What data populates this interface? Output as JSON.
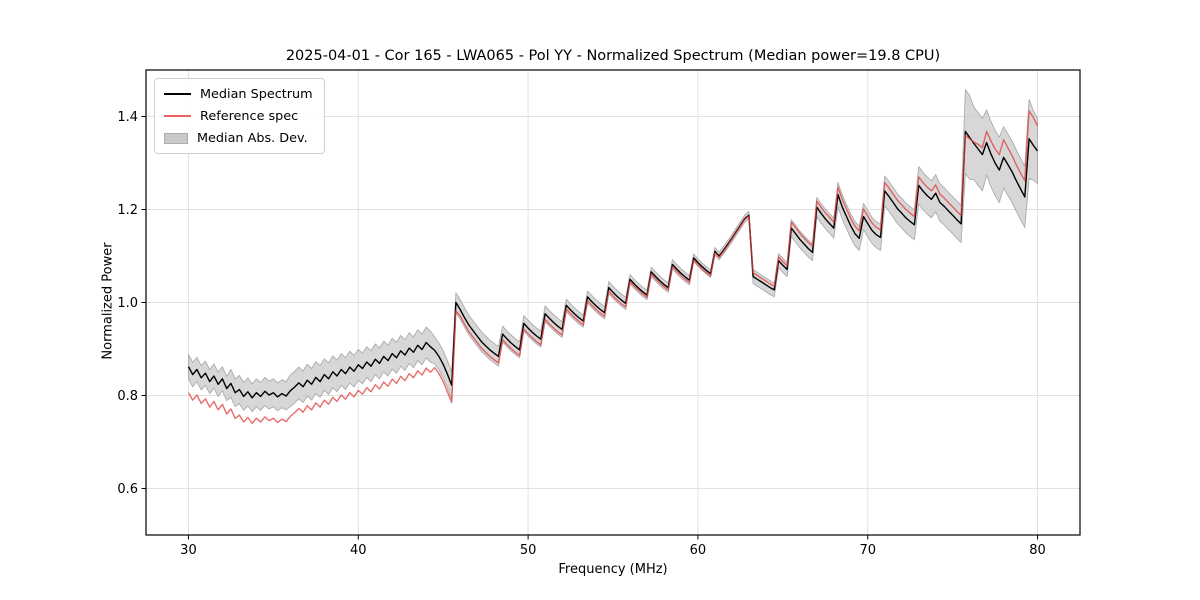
{
  "figure": {
    "title": "2025-04-01 - Cor 165 - LWA065 - Pol YY - Normalized Spectrum (Median power=19.8 CPU)"
  },
  "chart_data": {
    "type": "line",
    "title": "2025-04-01 - Cor 165 - LWA065 - Pol YY - Normalized Spectrum (Median power=19.8 CPU)",
    "xlabel": "Frequency (MHz)",
    "ylabel": "Normalized Power",
    "xlim": [
      27.5,
      82.5
    ],
    "ylim": [
      0.5,
      1.5
    ],
    "xticks": [
      30,
      40,
      50,
      60,
      70,
      80
    ],
    "yticks": [
      0.6,
      0.8,
      1.0,
      1.2,
      1.4
    ],
    "grid": true,
    "legend_position": "upper left",
    "colors": {
      "median": "#000000",
      "reference": "#e03c3c",
      "reference_opacity": 0.75,
      "mad_band": "#cdcdcd",
      "mad_edge": "#ababab",
      "grid": "#e1e1e1",
      "spine": "#000000"
    },
    "frequency_mhz": [
      30,
      30.25,
      30.5,
      30.75,
      31,
      31.25,
      31.5,
      31.75,
      32,
      32.25,
      32.5,
      32.75,
      33,
      33.25,
      33.5,
      33.75,
      34,
      34.25,
      34.5,
      34.75,
      35,
      35.25,
      35.5,
      35.75,
      36,
      36.25,
      36.5,
      36.75,
      37,
      37.25,
      37.5,
      37.75,
      38,
      38.25,
      38.5,
      38.75,
      39,
      39.25,
      39.5,
      39.75,
      40,
      40.25,
      40.5,
      40.75,
      41,
      41.25,
      41.5,
      41.75,
      42,
      42.25,
      42.5,
      42.75,
      43,
      43.25,
      43.5,
      43.75,
      44,
      44.25,
      44.5,
      44.75,
      45,
      45.25,
      45.5,
      45.75,
      46,
      46.25,
      46.5,
      46.75,
      47,
      47.25,
      47.5,
      47.75,
      48,
      48.25,
      48.5,
      48.75,
      49,
      49.25,
      49.5,
      49.75,
      50,
      50.25,
      50.5,
      50.75,
      51,
      51.25,
      51.5,
      51.75,
      52,
      52.25,
      52.5,
      52.75,
      53,
      53.25,
      53.5,
      53.75,
      54,
      54.25,
      54.5,
      54.75,
      55,
      55.25,
      55.5,
      55.75,
      56,
      56.25,
      56.5,
      56.75,
      57,
      57.25,
      57.5,
      57.75,
      58,
      58.25,
      58.5,
      58.75,
      59,
      59.25,
      59.5,
      59.75,
      60,
      60.25,
      60.5,
      60.75,
      61,
      61.25,
      61.5,
      61.75,
      62,
      62.25,
      62.5,
      62.75,
      63,
      63.25,
      63.5,
      63.75,
      64,
      64.25,
      64.5,
      64.75,
      65,
      65.25,
      65.5,
      65.75,
      66,
      66.25,
      66.5,
      66.75,
      67,
      67.25,
      67.5,
      67.75,
      68,
      68.25,
      68.5,
      68.75,
      69,
      69.25,
      69.5,
      69.75,
      70,
      70.25,
      70.5,
      70.75,
      71,
      71.25,
      71.5,
      71.75,
      72,
      72.25,
      72.5,
      72.75,
      73,
      73.25,
      73.5,
      73.75,
      74,
      74.25,
      74.5,
      74.75,
      75,
      75.25,
      75.5,
      75.75,
      76,
      76.25,
      76.5,
      76.75,
      77,
      77.25,
      77.5,
      77.75,
      78,
      78.25,
      78.5,
      78.75,
      79,
      79.25,
      79.5,
      79.75,
      80
    ],
    "series": [
      {
        "name": "Median Spectrum",
        "style": "line",
        "color": "#000000",
        "values": [
          0.862,
          0.845,
          0.856,
          0.838,
          0.848,
          0.83,
          0.842,
          0.824,
          0.836,
          0.815,
          0.826,
          0.806,
          0.813,
          0.798,
          0.808,
          0.795,
          0.806,
          0.798,
          0.809,
          0.801,
          0.806,
          0.797,
          0.804,
          0.799,
          0.81,
          0.818,
          0.827,
          0.819,
          0.833,
          0.824,
          0.839,
          0.83,
          0.845,
          0.836,
          0.851,
          0.842,
          0.856,
          0.847,
          0.861,
          0.852,
          0.866,
          0.858,
          0.872,
          0.863,
          0.878,
          0.869,
          0.884,
          0.875,
          0.89,
          0.881,
          0.896,
          0.887,
          0.902,
          0.893,
          0.908,
          0.899,
          0.914,
          0.905,
          0.897,
          0.884,
          0.867,
          0.846,
          0.822,
          1.0,
          0.985,
          0.968,
          0.952,
          0.94,
          0.928,
          0.916,
          0.907,
          0.898,
          0.891,
          0.884,
          0.932,
          0.922,
          0.913,
          0.905,
          0.898,
          0.955,
          0.945,
          0.936,
          0.928,
          0.921,
          0.976,
          0.966,
          0.957,
          0.949,
          0.942,
          0.994,
          0.984,
          0.975,
          0.967,
          0.96,
          1.012,
          1.002,
          0.993,
          0.985,
          0.978,
          1.032,
          1.022,
          1.013,
          1.005,
          0.998,
          1.05,
          1.04,
          1.031,
          1.023,
          1.016,
          1.066,
          1.056,
          1.047,
          1.039,
          1.032,
          1.082,
          1.072,
          1.063,
          1.055,
          1.048,
          1.096,
          1.086,
          1.077,
          1.069,
          1.062,
          1.11,
          1.1,
          1.112,
          1.125,
          1.138,
          1.152,
          1.166,
          1.18,
          1.188,
          1.056,
          1.05,
          1.044,
          1.038,
          1.032,
          1.027,
          1.09,
          1.08,
          1.071,
          1.16,
          1.148,
          1.136,
          1.126,
          1.116,
          1.108,
          1.205,
          1.192,
          1.18,
          1.17,
          1.16,
          1.232,
          1.205,
          1.185,
          1.165,
          1.148,
          1.138,
          1.185,
          1.17,
          1.155,
          1.146,
          1.14,
          1.24,
          1.228,
          1.215,
          1.202,
          1.192,
          1.182,
          1.174,
          1.167,
          1.252,
          1.24,
          1.23,
          1.222,
          1.235,
          1.215,
          1.207,
          1.197,
          1.188,
          1.178,
          1.169,
          1.368,
          1.355,
          1.342,
          1.33,
          1.318,
          1.344,
          1.32,
          1.3,
          1.285,
          1.312,
          1.297,
          1.281,
          1.262,
          1.244,
          1.227,
          1.352,
          1.338,
          1.326
        ]
      },
      {
        "name": "Reference spec",
        "style": "line",
        "color": "#f06060",
        "values": [
          0.806,
          0.79,
          0.801,
          0.783,
          0.793,
          0.775,
          0.787,
          0.769,
          0.781,
          0.76,
          0.771,
          0.751,
          0.758,
          0.743,
          0.753,
          0.74,
          0.751,
          0.743,
          0.754,
          0.746,
          0.751,
          0.742,
          0.749,
          0.744,
          0.755,
          0.763,
          0.772,
          0.764,
          0.778,
          0.769,
          0.784,
          0.775,
          0.79,
          0.781,
          0.796,
          0.787,
          0.801,
          0.792,
          0.806,
          0.797,
          0.811,
          0.803,
          0.817,
          0.808,
          0.823,
          0.814,
          0.829,
          0.82,
          0.835,
          0.826,
          0.841,
          0.832,
          0.847,
          0.838,
          0.853,
          0.844,
          0.859,
          0.85,
          0.86,
          0.847,
          0.83,
          0.808,
          0.785,
          0.982,
          0.971,
          0.954,
          0.938,
          0.926,
          0.914,
          0.902,
          0.893,
          0.884,
          0.877,
          0.87,
          0.92,
          0.91,
          0.901,
          0.893,
          0.886,
          0.943,
          0.933,
          0.924,
          0.916,
          0.909,
          0.964,
          0.954,
          0.945,
          0.937,
          0.93,
          0.986,
          0.976,
          0.967,
          0.959,
          0.952,
          1.004,
          0.994,
          0.985,
          0.977,
          0.97,
          1.024,
          1.014,
          1.005,
          0.997,
          0.99,
          1.045,
          1.035,
          1.026,
          1.018,
          1.011,
          1.061,
          1.051,
          1.042,
          1.034,
          1.027,
          1.077,
          1.067,
          1.058,
          1.05,
          1.043,
          1.091,
          1.081,
          1.072,
          1.064,
          1.057,
          1.107,
          1.097,
          1.109,
          1.122,
          1.136,
          1.15,
          1.164,
          1.178,
          1.186,
          1.064,
          1.058,
          1.052,
          1.046,
          1.04,
          1.035,
          1.098,
          1.088,
          1.079,
          1.173,
          1.161,
          1.149,
          1.139,
          1.129,
          1.121,
          1.218,
          1.205,
          1.193,
          1.183,
          1.173,
          1.248,
          1.221,
          1.201,
          1.181,
          1.164,
          1.154,
          1.201,
          1.186,
          1.171,
          1.162,
          1.156,
          1.258,
          1.246,
          1.233,
          1.22,
          1.21,
          1.2,
          1.192,
          1.185,
          1.27,
          1.258,
          1.248,
          1.24,
          1.253,
          1.233,
          1.225,
          1.215,
          1.206,
          1.196,
          1.187,
          1.36,
          1.352,
          1.345,
          1.34,
          1.333,
          1.368,
          1.348,
          1.33,
          1.318,
          1.35,
          1.333,
          1.316,
          1.296,
          1.278,
          1.262,
          1.412,
          1.398,
          1.38
        ]
      },
      {
        "name": "Median Abs. Dev.",
        "style": "band",
        "around": "Median Spectrum",
        "color": "#cdcdcd",
        "half_width": [
          0.026,
          0.026,
          0.026,
          0.026,
          0.026,
          0.026,
          0.026,
          0.026,
          0.026,
          0.026,
          0.03,
          0.03,
          0.03,
          0.03,
          0.03,
          0.03,
          0.03,
          0.03,
          0.03,
          0.03,
          0.03,
          0.03,
          0.03,
          0.03,
          0.034,
          0.034,
          0.034,
          0.034,
          0.034,
          0.034,
          0.034,
          0.034,
          0.034,
          0.034,
          0.034,
          0.034,
          0.034,
          0.034,
          0.034,
          0.034,
          0.033,
          0.033,
          0.033,
          0.033,
          0.033,
          0.033,
          0.033,
          0.033,
          0.033,
          0.033,
          0.033,
          0.033,
          0.033,
          0.033,
          0.033,
          0.033,
          0.033,
          0.033,
          0.029,
          0.029,
          0.029,
          0.029,
          0.029,
          0.021,
          0.021,
          0.021,
          0.021,
          0.021,
          0.021,
          0.021,
          0.021,
          0.021,
          0.021,
          0.021,
          0.017,
          0.017,
          0.017,
          0.017,
          0.017,
          0.017,
          0.017,
          0.017,
          0.017,
          0.017,
          0.017,
          0.017,
          0.017,
          0.017,
          0.017,
          0.013,
          0.013,
          0.013,
          0.013,
          0.013,
          0.013,
          0.013,
          0.013,
          0.013,
          0.013,
          0.013,
          0.013,
          0.013,
          0.013,
          0.013,
          0.01,
          0.01,
          0.01,
          0.01,
          0.01,
          0.01,
          0.01,
          0.01,
          0.01,
          0.01,
          0.01,
          0.01,
          0.01,
          0.01,
          0.01,
          0.008,
          0.008,
          0.008,
          0.008,
          0.008,
          0.008,
          0.008,
          0.008,
          0.008,
          0.008,
          0.008,
          0.008,
          0.008,
          0.008,
          0.015,
          0.015,
          0.015,
          0.015,
          0.015,
          0.015,
          0.015,
          0.015,
          0.015,
          0.018,
          0.018,
          0.018,
          0.018,
          0.018,
          0.018,
          0.021,
          0.021,
          0.021,
          0.021,
          0.021,
          0.026,
          0.026,
          0.026,
          0.026,
          0.026,
          0.026,
          0.028,
          0.028,
          0.028,
          0.028,
          0.028,
          0.032,
          0.032,
          0.032,
          0.032,
          0.032,
          0.032,
          0.032,
          0.032,
          0.04,
          0.04,
          0.04,
          0.04,
          0.04,
          0.04,
          0.04,
          0.04,
          0.04,
          0.04,
          0.04,
          0.09,
          0.09,
          0.078,
          0.078,
          0.078,
          0.07,
          0.07,
          0.07,
          0.07,
          0.066,
          0.066,
          0.066,
          0.066,
          0.066,
          0.066,
          0.085,
          0.075,
          0.07
        ]
      }
    ]
  }
}
